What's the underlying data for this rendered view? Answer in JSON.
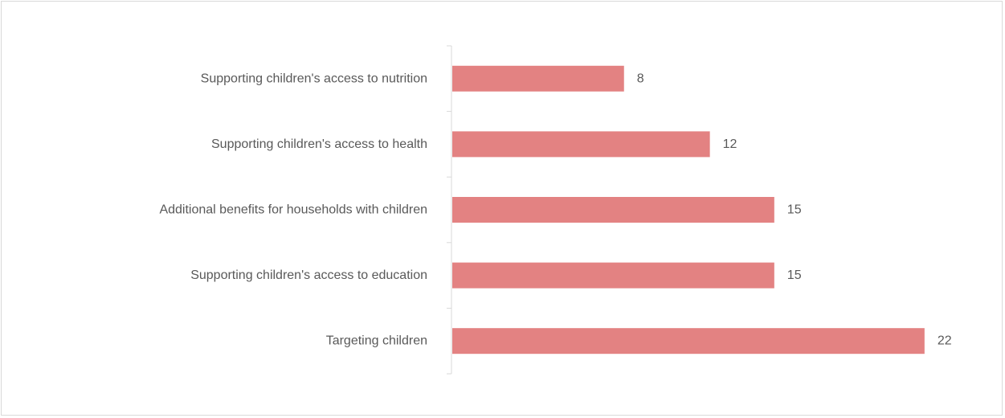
{
  "chart_data": {
    "type": "bar",
    "orientation": "horizontal",
    "categories": [
      "Supporting children's access to nutrition",
      "Supporting children's access to health",
      "Additional benefits for households with children",
      "Supporting children's access to education",
      "Targeting children"
    ],
    "values": [
      8,
      12,
      15,
      15,
      22
    ],
    "title": "",
    "xlabel": "",
    "ylabel": "",
    "data_labels": true,
    "grid": false,
    "legend": "none",
    "bar_color": "#e38282",
    "axis_color": "#d9d9d9",
    "text_color": "#595959"
  }
}
